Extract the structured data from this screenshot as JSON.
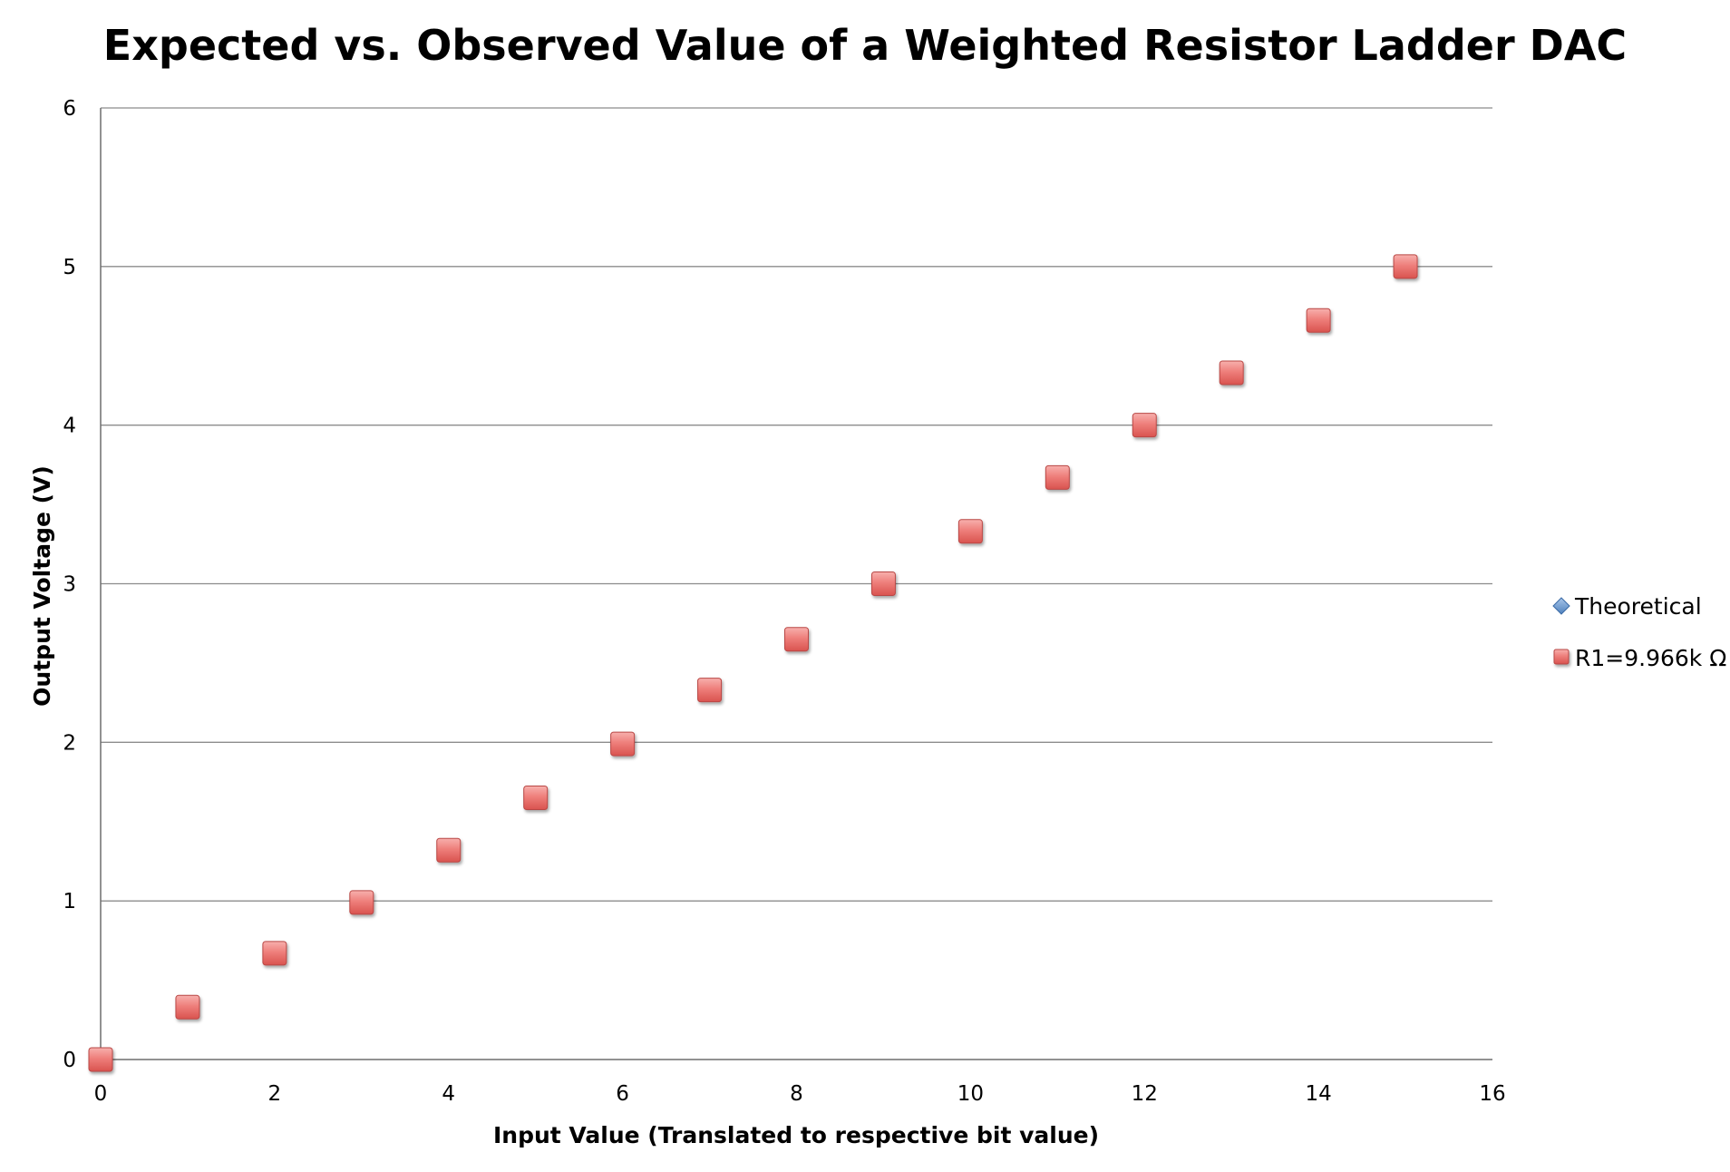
{
  "chart_data": {
    "type": "scatter",
    "title": "Expected vs. Observed Value of a Weighted Resistor Ladder DAC",
    "xlabel": "Input Value (Translated to respective bit value)",
    "ylabel": "Output Voltage (V)",
    "xlim": [
      0,
      16
    ],
    "ylim": [
      0,
      6
    ],
    "xticks": [
      "0",
      "2",
      "4",
      "6",
      "8",
      "10",
      "12",
      "14",
      "16"
    ],
    "yticks": [
      "0",
      "1",
      "2",
      "3",
      "4",
      "5",
      "6"
    ],
    "grid": "horizontal",
    "legend_position": "right",
    "series": [
      {
        "name": "Theoretical",
        "marker": "diamond",
        "color": "#4f81bd",
        "x": [
          0,
          1,
          2,
          3,
          4,
          5,
          6,
          7,
          8,
          9,
          10,
          11,
          12,
          13,
          14,
          15
        ],
        "y": [
          0,
          0.333,
          0.667,
          1.0,
          1.333,
          1.667,
          2.0,
          2.333,
          2.667,
          3.0,
          3.333,
          3.667,
          4.0,
          4.333,
          4.667,
          5.0
        ]
      },
      {
        "name": "R1=9.966k Ω",
        "marker": "square",
        "color": "#e8625f",
        "x": [
          0,
          1,
          2,
          3,
          4,
          5,
          6,
          7,
          8,
          9,
          10,
          11,
          12,
          13,
          14,
          15
        ],
        "y": [
          0,
          0.33,
          0.67,
          0.99,
          1.32,
          1.65,
          1.99,
          2.33,
          2.65,
          3.0,
          3.33,
          3.67,
          4.0,
          4.33,
          4.66,
          5.0
        ]
      }
    ]
  }
}
